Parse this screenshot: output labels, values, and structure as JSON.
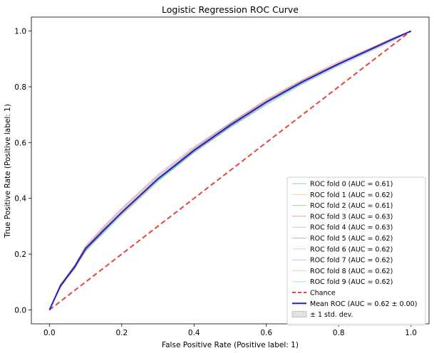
{
  "chart_data": {
    "type": "line",
    "title": "Logistic Regression ROC Curve",
    "xlabel": "False Positive Rate (Positive label: 1)",
    "ylabel": "True Positive Rate (Positive label: 1)",
    "xlim": [
      -0.05,
      1.05
    ],
    "ylim": [
      -0.05,
      1.05
    ],
    "xticks": [
      0.0,
      0.2,
      0.4,
      0.6,
      0.8,
      1.0
    ],
    "yticks": [
      0.0,
      0.2,
      0.4,
      0.6,
      0.8,
      1.0
    ],
    "xtick_labels": [
      "0.0",
      "0.2",
      "0.4",
      "0.6",
      "0.8",
      "1.0"
    ],
    "ytick_labels": [
      "0.0",
      "0.2",
      "0.4",
      "0.6",
      "0.8",
      "1.0"
    ],
    "grid": false,
    "legend_position": "lower-right",
    "mean_fpr": [
      0.0,
      0.03,
      0.07,
      0.1,
      0.15,
      0.2,
      0.25,
      0.3,
      0.4,
      0.5,
      0.6,
      0.7,
      0.8,
      0.9,
      0.95,
      1.0
    ],
    "folds": [
      {
        "name": "ROC fold 0 (AUC = 0.61)",
        "color": "#1f77b4",
        "tpr": [
          0.0,
          0.085,
          0.15,
          0.21,
          0.28,
          0.345,
          0.405,
          0.465,
          0.565,
          0.655,
          0.735,
          0.81,
          0.875,
          0.935,
          0.965,
          1.0
        ]
      },
      {
        "name": "ROC fold 1 (AUC = 0.62)",
        "color": "#ff7f0e",
        "tpr": [
          0.0,
          0.09,
          0.145,
          0.22,
          0.29,
          0.345,
          0.41,
          0.47,
          0.575,
          0.665,
          0.75,
          0.825,
          0.885,
          0.945,
          0.975,
          1.0
        ]
      },
      {
        "name": "ROC fold 2 (AUC = 0.61)",
        "color": "#2ca02c",
        "tpr": [
          0.0,
          0.08,
          0.155,
          0.215,
          0.275,
          0.34,
          0.4,
          0.46,
          0.565,
          0.655,
          0.74,
          0.815,
          0.88,
          0.94,
          0.97,
          1.0
        ]
      },
      {
        "name": "ROC fold 3 (AUC = 0.63)",
        "color": "#d62728",
        "tpr": [
          0.0,
          0.09,
          0.16,
          0.225,
          0.295,
          0.36,
          0.42,
          0.48,
          0.58,
          0.67,
          0.755,
          0.825,
          0.89,
          0.945,
          0.975,
          1.0
        ]
      },
      {
        "name": "ROC fold 4 (AUC = 0.63)",
        "color": "#9467bd",
        "tpr": [
          0.0,
          0.09,
          0.16,
          0.23,
          0.3,
          0.365,
          0.425,
          0.485,
          0.585,
          0.67,
          0.75,
          0.82,
          0.885,
          0.94,
          0.97,
          1.0
        ]
      },
      {
        "name": "ROC fold 5 (AUC = 0.62)",
        "color": "#8c564b",
        "tpr": [
          0.0,
          0.085,
          0.155,
          0.22,
          0.29,
          0.35,
          0.41,
          0.47,
          0.575,
          0.665,
          0.745,
          0.815,
          0.88,
          0.94,
          0.97,
          1.0
        ]
      },
      {
        "name": "ROC fold 6 (AUC = 0.62)",
        "color": "#e377c2",
        "tpr": [
          0.0,
          0.085,
          0.155,
          0.215,
          0.285,
          0.345,
          0.405,
          0.47,
          0.57,
          0.66,
          0.745,
          0.82,
          0.88,
          0.94,
          0.97,
          1.0
        ]
      },
      {
        "name": "ROC fold 7 (AUC = 0.62)",
        "color": "#7f7f7f",
        "tpr": [
          0.0,
          0.085,
          0.15,
          0.215,
          0.285,
          0.35,
          0.41,
          0.47,
          0.57,
          0.66,
          0.745,
          0.82,
          0.88,
          0.94,
          0.97,
          1.0
        ]
      },
      {
        "name": "ROC fold 8 (AUC = 0.62)",
        "color": "#bcbd22",
        "tpr": [
          0.0,
          0.08,
          0.15,
          0.21,
          0.285,
          0.345,
          0.405,
          0.465,
          0.57,
          0.66,
          0.745,
          0.82,
          0.88,
          0.94,
          0.97,
          1.0
        ]
      },
      {
        "name": "ROC fold 9 (AUC = 0.62)",
        "color": "#17becf",
        "tpr": [
          0.0,
          0.085,
          0.155,
          0.22,
          0.285,
          0.35,
          0.41,
          0.465,
          0.57,
          0.66,
          0.745,
          0.815,
          0.88,
          0.94,
          0.97,
          1.0
        ]
      }
    ],
    "chance": {
      "name": "Chance",
      "color": "#e8453c",
      "x": [
        0.0,
        1.0
      ],
      "y": [
        0.0,
        1.0
      ]
    },
    "mean": {
      "name": "Mean ROC (AUC = 0.62 ± 0.00)",
      "color": "#1f22cc",
      "tpr": [
        0.0,
        0.085,
        0.155,
        0.22,
        0.285,
        0.35,
        0.41,
        0.47,
        0.572,
        0.662,
        0.745,
        0.818,
        0.882,
        0.941,
        0.971,
        1.0
      ]
    },
    "std_band": {
      "name": "± 1 std. dev.",
      "color": "#b0b0b0",
      "std": [
        0.0,
        0.006,
        0.006,
        0.007,
        0.008,
        0.008,
        0.008,
        0.008,
        0.007,
        0.007,
        0.007,
        0.006,
        0.005,
        0.004,
        0.003,
        0.0
      ]
    }
  }
}
